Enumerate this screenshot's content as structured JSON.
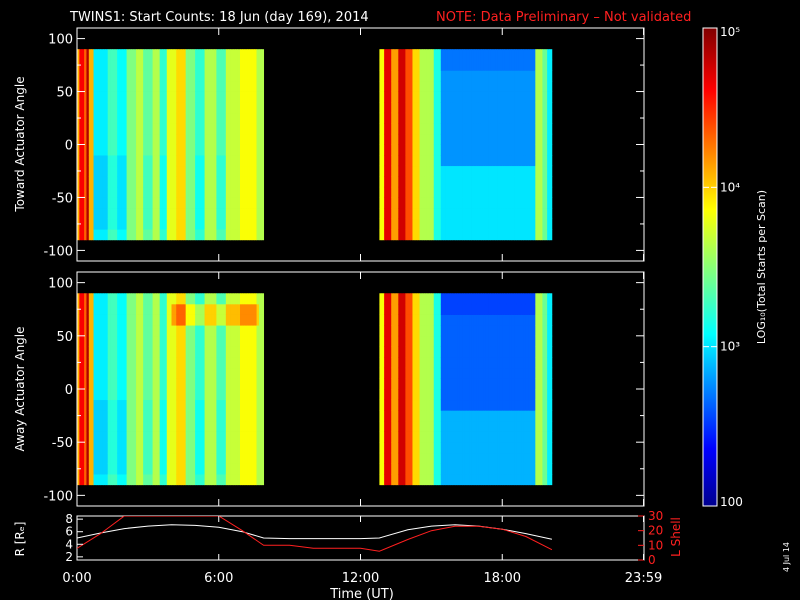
{
  "title": "TWINS1: Start Counts: 18 Jun (day 169), 2014",
  "note": "NOTE: Data Preliminary – Not validated",
  "date_stamp": "4 Jul 14",
  "colors": {
    "note": "#ff2020",
    "r_line": "#ffffff",
    "lshell_line": "#ff2020",
    "background": "#000000"
  },
  "chart_data": [
    {
      "type": "heatmap",
      "ylabel": "Toward Actuator Angle",
      "ylim": [
        -110,
        110
      ],
      "yticks": [
        100,
        50,
        0,
        -50,
        -100
      ],
      "xlim": [
        0,
        24
      ],
      "coverage_hours": [
        [
          0,
          7.9
        ],
        [
          12.8,
          20.1
        ]
      ],
      "angle_range": [
        -90,
        90
      ]
    },
    {
      "type": "heatmap",
      "ylabel": "Away Actuator Angle",
      "ylim": [
        -110,
        110
      ],
      "yticks": [
        100,
        50,
        0,
        -50,
        -100
      ],
      "xlim": [
        0,
        24
      ],
      "coverage_hours": [
        [
          0,
          7.9
        ],
        [
          12.8,
          20.1
        ]
      ],
      "angle_range": [
        -90,
        90
      ]
    },
    {
      "type": "line",
      "ylabel_left": "R [Rₑ]",
      "ylabel_right": "L Shell",
      "xlabel": "Time (UT)",
      "xtick_labels": [
        "0:00",
        "6:00",
        "12:00",
        "18:00",
        "23:59"
      ],
      "xtick_values": [
        0,
        6,
        12,
        18,
        23.98
      ],
      "yticks_left": [
        2,
        4,
        6,
        8
      ],
      "ylim_left": [
        1.5,
        8.5
      ],
      "yticks_right": [
        0,
        10,
        20,
        30
      ],
      "ylim_right": [
        0,
        30
      ],
      "series": [
        {
          "axis": "left",
          "x": [
            0,
            1,
            2,
            3,
            4,
            5,
            6,
            7,
            7.9,
            9,
            10,
            11,
            12,
            12.8,
            14,
            15,
            16,
            17,
            18,
            19,
            20.1
          ],
          "y": [
            5.0,
            5.8,
            6.5,
            6.9,
            7.1,
            7.0,
            6.7,
            6.0,
            5.0,
            4.9,
            4.9,
            4.9,
            4.9,
            5.0,
            6.3,
            6.9,
            7.1,
            6.9,
            6.4,
            5.7,
            4.8
          ]
        },
        {
          "axis": "right",
          "x": [
            0,
            1,
            2.0,
            2.2,
            5.8,
            6.0,
            7.0,
            7.9,
            9,
            10,
            11,
            12,
            12.8,
            14,
            15,
            16,
            17,
            18,
            19,
            20.1
          ],
          "y": [
            8,
            18,
            30,
            30,
            30,
            30,
            20,
            10,
            10,
            8,
            8,
            8,
            6,
            14,
            20,
            23,
            23,
            21,
            16,
            7
          ]
        }
      ]
    },
    {
      "type": "heatmap",
      "colorbar": true,
      "label": "LOG₁₀(Total Starts per Scan)",
      "tick_labels": [
        "10⁵",
        "10⁴",
        "10³",
        "100"
      ],
      "tick_values": [
        100000,
        10000,
        1000,
        100
      ],
      "range": [
        100,
        100000
      ]
    }
  ]
}
